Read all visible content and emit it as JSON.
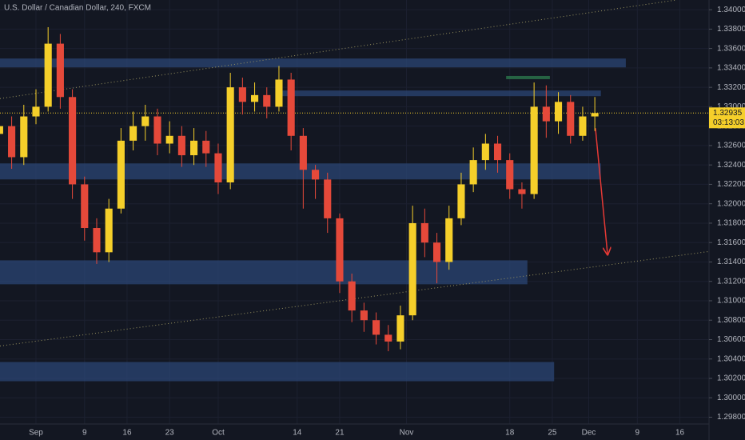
{
  "chart_data": {
    "type": "candlestick",
    "title": "U.S. Dollar / Canadian Dollar, 240, FXCM",
    "up_color": "#f5cf2a",
    "down_color": "#e5493a",
    "x": [
      -6,
      -4,
      -2,
      0,
      2,
      4,
      6,
      8,
      10,
      12,
      14,
      16,
      18,
      20,
      22,
      24,
      26,
      28,
      30,
      32,
      34,
      36,
      38,
      40,
      42,
      44,
      46,
      48,
      50,
      52,
      54,
      56,
      58,
      60,
      62,
      64,
      66,
      68,
      70,
      72,
      74,
      76,
      78,
      80,
      82,
      84,
      86,
      88,
      90,
      92
    ],
    "open": [
      1.3272,
      1.328,
      1.3248,
      1.329,
      1.33,
      1.3365,
      1.331,
      1.322,
      1.3175,
      1.315,
      1.3195,
      1.3265,
      1.328,
      1.329,
      1.3262,
      1.327,
      1.325,
      1.3265,
      1.3252,
      1.3222,
      1.332,
      1.3305,
      1.3312,
      1.33,
      1.3328,
      1.327,
      1.3235,
      1.3225,
      1.3185,
      1.312,
      1.309,
      1.308,
      1.3065,
      1.3058,
      1.3085,
      1.318,
      1.316,
      1.314,
      1.3185,
      1.322,
      1.3245,
      1.3262,
      1.3245,
      1.3215,
      1.321,
      1.33,
      1.3285,
      1.3305,
      1.327,
      1.329
    ],
    "high": [
      1.3292,
      1.329,
      1.3302,
      1.3318,
      1.3382,
      1.3375,
      1.3318,
      1.3228,
      1.3185,
      1.3205,
      1.3278,
      1.3295,
      1.3302,
      1.3298,
      1.3285,
      1.328,
      1.3278,
      1.3275,
      1.3262,
      1.3335,
      1.333,
      1.3325,
      1.332,
      1.3342,
      1.3335,
      1.3278,
      1.324,
      1.3232,
      1.319,
      1.3128,
      1.3098,
      1.3088,
      1.3075,
      1.3095,
      1.3198,
      1.3195,
      1.317,
      1.3198,
      1.3232,
      1.3258,
      1.3272,
      1.327,
      1.3252,
      1.3222,
      1.3325,
      1.3322,
      1.3315,
      1.3312,
      1.33,
      1.331
    ],
    "low": [
      1.3258,
      1.3236,
      1.324,
      1.3282,
      1.3295,
      1.3298,
      1.3205,
      1.3162,
      1.3138,
      1.314,
      1.319,
      1.3255,
      1.3265,
      1.325,
      1.3252,
      1.3238,
      1.324,
      1.3238,
      1.321,
      1.3215,
      1.3292,
      1.3295,
      1.3288,
      1.3295,
      1.3255,
      1.3195,
      1.3205,
      1.317,
      1.3108,
      1.3078,
      1.3068,
      1.3055,
      1.3048,
      1.305,
      1.308,
      1.3145,
      1.3118,
      1.3132,
      1.3178,
      1.3212,
      1.3235,
      1.3232,
      1.3205,
      1.3195,
      1.3205,
      1.3268,
      1.3272,
      1.3262,
      1.3265,
      1.3275
    ],
    "close": [
      1.328,
      1.3248,
      1.329,
      1.33,
      1.3365,
      1.331,
      1.322,
      1.3175,
      1.315,
      1.3195,
      1.3265,
      1.328,
      1.329,
      1.3262,
      1.327,
      1.325,
      1.3265,
      1.3252,
      1.3222,
      1.332,
      1.3305,
      1.3312,
      1.33,
      1.3328,
      1.327,
      1.3235,
      1.3225,
      1.3185,
      1.312,
      1.309,
      1.308,
      1.3065,
      1.3058,
      1.3085,
      1.318,
      1.316,
      1.314,
      1.3185,
      1.322,
      1.3245,
      1.3262,
      1.3245,
      1.3215,
      1.321,
      1.33,
      1.3285,
      1.3305,
      1.327,
      1.329,
      1.32935
    ],
    "xlim": [
      -5.92,
      110.8
    ],
    "ylim": [
      1.2973,
      1.341
    ],
    "xticks": [
      {
        "value": 0,
        "label": "Sep"
      },
      {
        "value": 8,
        "label": "9"
      },
      {
        "value": 15,
        "label": "16"
      },
      {
        "value": 22,
        "label": "23"
      },
      {
        "value": 30,
        "label": "Oct"
      },
      {
        "value": 43,
        "label": "14"
      },
      {
        "value": 50,
        "label": "21"
      },
      {
        "value": 61,
        "label": "Nov"
      },
      {
        "value": 78,
        "label": "18"
      },
      {
        "value": 85,
        "label": "25"
      },
      {
        "value": 91,
        "label": "Dec"
      },
      {
        "value": 99,
        "label": "9"
      },
      {
        "value": 106,
        "label": "16"
      }
    ],
    "yticks": [
      {
        "value": 1.298,
        "label": "1.29800"
      },
      {
        "value": 1.3,
        "label": "1.30000"
      },
      {
        "value": 1.302,
        "label": "1.30200"
      },
      {
        "value": 1.304,
        "label": "1.30400"
      },
      {
        "value": 1.306,
        "label": "1.30600"
      },
      {
        "value": 1.308,
        "label": "1.30800"
      },
      {
        "value": 1.31,
        "label": "1.31000"
      },
      {
        "value": 1.312,
        "label": "1.31200"
      },
      {
        "value": 1.314,
        "label": "1.31400"
      },
      {
        "value": 1.316,
        "label": "1.31600"
      },
      {
        "value": 1.318,
        "label": "1.31800"
      },
      {
        "value": 1.32,
        "label": "1.32000"
      },
      {
        "value": 1.322,
        "label": "1.32200"
      },
      {
        "value": 1.324,
        "label": "1.32400"
      },
      {
        "value": 1.326,
        "label": "1.32600"
      },
      {
        "value": 1.328,
        "label": "1.32800"
      },
      {
        "value": 1.33,
        "label": "1.33000"
      },
      {
        "value": 1.332,
        "label": "1.33200"
      },
      {
        "value": 1.334,
        "label": "1.33400"
      },
      {
        "value": 1.336,
        "label": "1.33600"
      },
      {
        "value": 1.338,
        "label": "1.33800"
      },
      {
        "value": 1.34,
        "label": "1.34000"
      }
    ],
    "last_price": 1.32935,
    "countdown": "03:13:03",
    "zones": [
      {
        "from": 1.33406,
        "to": 1.33497,
        "start": -5.92,
        "end": 97.1,
        "color": "#2b4574"
      },
      {
        "from": 1.33109,
        "to": 1.33167,
        "start": 40.1,
        "end": 93,
        "color": "#2b4574"
      },
      {
        "from": 1.32251,
        "to": 1.32416,
        "start": -5.92,
        "end": 93,
        "color": "#2b4574"
      },
      {
        "from": 1.3117,
        "to": 1.31417,
        "start": -5.92,
        "end": 80.9,
        "color": "#2b4574"
      },
      {
        "from": 1.30171,
        "to": 1.30369,
        "start": -5.92,
        "end": 85.3,
        "color": "#2b4574"
      },
      {
        "from": 1.33284,
        "to": 1.33317,
        "start": 77.4,
        "end": 84.6,
        "color": "#2e7d4f"
      }
    ],
    "lines": [
      {
        "start": [
          -5.92,
          1.33084
        ],
        "end": [
          105.3,
          1.34099
        ],
        "color": "#9a9460",
        "style": "dotted"
      },
      {
        "start": [
          -5.92,
          1.30534
        ],
        "end": [
          110.8,
          1.31508
        ],
        "color": "#9a9460",
        "style": "dotted"
      },
      {
        "start": [
          92.1,
          1.32779
        ],
        "end": [
          94.1,
          1.31475
        ],
        "color": "#e53935",
        "style": "arrow"
      }
    ]
  }
}
